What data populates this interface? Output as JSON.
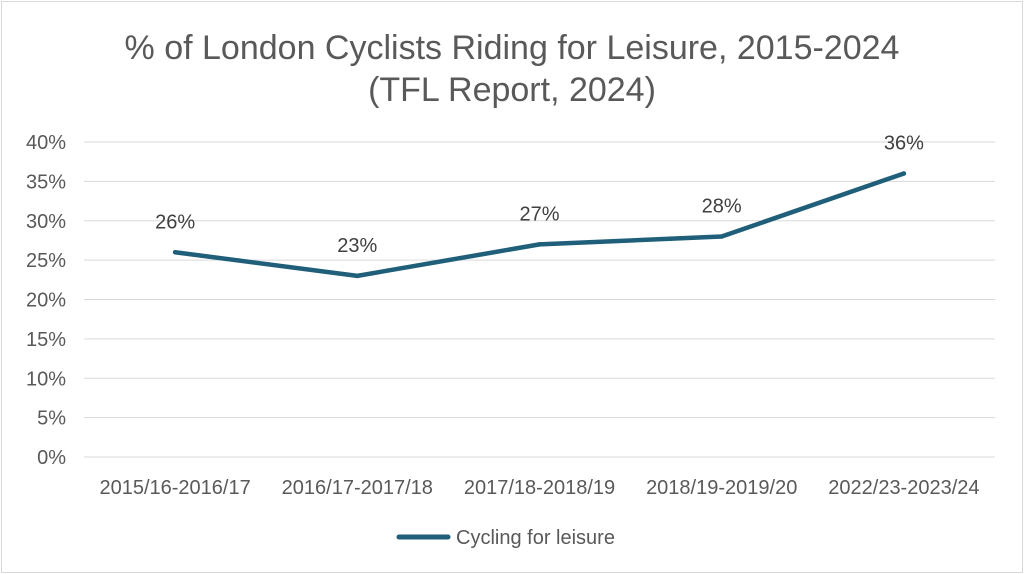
{
  "chart_data": {
    "type": "line",
    "title": "% of London Cyclists Riding for Leisure, 2015-2024",
    "subtitle": "(TFL Report, 2024)",
    "categories": [
      "2015/16-2016/17",
      "2016/17-2017/18",
      "2017/18-2018/19",
      "2018/19-2019/20",
      "2022/23-2023/24"
    ],
    "series": [
      {
        "name": "Cycling for leisure",
        "values": [
          26,
          23,
          27,
          28,
          36
        ],
        "data_labels": [
          "26%",
          "23%",
          "27%",
          "28%",
          "36%"
        ],
        "color": "#1f5f7a"
      }
    ],
    "y_ticks": [
      "0%",
      "5%",
      "10%",
      "15%",
      "20%",
      "25%",
      "30%",
      "35%",
      "40%"
    ],
    "ylim": [
      0,
      40
    ],
    "ytick_step": 5,
    "grid": true,
    "legend_position": "bottom",
    "gridline_color": "#d9d9d9"
  }
}
